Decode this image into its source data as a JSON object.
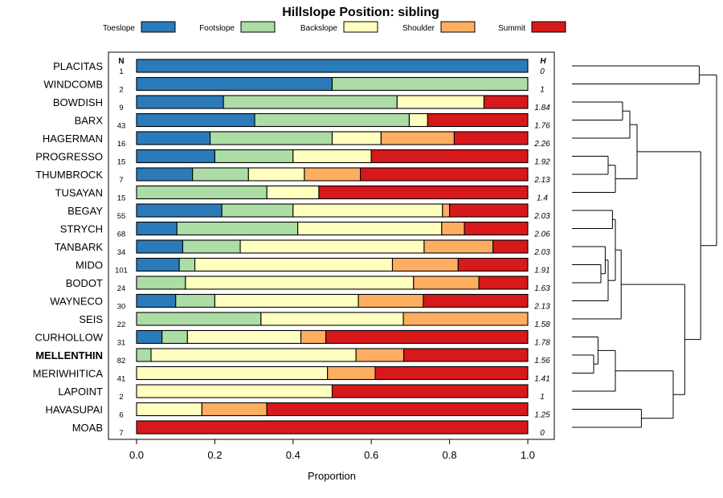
{
  "chart_data": {
    "type": "bar",
    "orientation": "horizontal",
    "stacked": true,
    "title": "Hillslope Position: sibling",
    "xlabel": "Proportion",
    "ylabel": "",
    "xlim": [
      0,
      1
    ],
    "x_ticks": [
      "0.0",
      "0.2",
      "0.4",
      "0.6",
      "0.8",
      "1.0"
    ],
    "n_header": "N",
    "h_header": "H",
    "legend_position": "top",
    "highlight": "MELLENTHIN",
    "series": [
      {
        "name": "Toeslope",
        "color": "#2b7bba"
      },
      {
        "name": "Footslope",
        "color": "#abdda4"
      },
      {
        "name": "Backslope",
        "color": "#ffffbf"
      },
      {
        "name": "Shoulder",
        "color": "#fdae61"
      },
      {
        "name": "Summit",
        "color": "#d7191c"
      }
    ],
    "categories": [
      "PLACITAS",
      "WINDCOMB",
      "BOWDISH",
      "BARX",
      "HAGERMAN",
      "PROGRESSO",
      "THUMBROCK",
      "TUSAYAN",
      "BEGAY",
      "STRYCH",
      "TANBARK",
      "MIDO",
      "BODOT",
      "WAYNECO",
      "SEIS",
      "CURHOLLOW",
      "MELLENTHIN",
      "MERIWHITICA",
      "LAPOINT",
      "HAVASUPAI",
      "MOAB"
    ],
    "n": [
      "1",
      "2",
      "9",
      "43",
      "16",
      "15",
      "7",
      "15",
      "55",
      "68",
      "34",
      "101",
      "24",
      "30",
      "22",
      "31",
      "82",
      "41",
      "2",
      "6",
      "7"
    ],
    "h": [
      "0",
      "1",
      "1.84",
      "1.76",
      "2.26",
      "1.92",
      "2.13",
      "1.4",
      "2.03",
      "2.06",
      "2.03",
      "1.91",
      "1.63",
      "2.13",
      "1.58",
      "1.78",
      "1.56",
      "1.41",
      "1",
      "1.25",
      "0"
    ],
    "values": [
      [
        1.0,
        0,
        0,
        0,
        0
      ],
      [
        0.5,
        0.5,
        0,
        0,
        0
      ],
      [
        0.222,
        0.444,
        0.222,
        0,
        0.112
      ],
      [
        0.302,
        0.395,
        0.047,
        0,
        0.256
      ],
      [
        0.188,
        0.312,
        0.125,
        0.187,
        0.188
      ],
      [
        0.2,
        0.2,
        0.2,
        0,
        0.4
      ],
      [
        0.143,
        0.143,
        0.143,
        0.143,
        0.428
      ],
      [
        0,
        0.333,
        0.133,
        0,
        0.534
      ],
      [
        0.218,
        0.182,
        0.382,
        0.018,
        0.2
      ],
      [
        0.103,
        0.309,
        0.368,
        0.058,
        0.162
      ],
      [
        0.118,
        0.147,
        0.47,
        0.176,
        0.089
      ],
      [
        0.109,
        0.04,
        0.505,
        0.168,
        0.178
      ],
      [
        0,
        0.125,
        0.583,
        0.167,
        0.125
      ],
      [
        0.1,
        0.1,
        0.367,
        0.166,
        0.267
      ],
      [
        0,
        0.318,
        0.364,
        0.318,
        0
      ],
      [
        0.065,
        0.065,
        0.29,
        0.064,
        0.516
      ],
      [
        0,
        0.037,
        0.524,
        0.122,
        0.317
      ],
      [
        0,
        0,
        0.488,
        0.122,
        0.39
      ],
      [
        0,
        0,
        0.5,
        0,
        0.5
      ],
      [
        0,
        0,
        0.167,
        0.166,
        0.667
      ],
      [
        0,
        0,
        0,
        0,
        1.0
      ]
    ],
    "dendrogram": {
      "leaf_order": [
        "PLACITAS",
        "WINDCOMB",
        "BOWDISH",
        "BARX",
        "HAGERMAN",
        "PROGRESSO",
        "THUMBROCK",
        "TUSAYAN",
        "BEGAY",
        "STRYCH",
        "TANBARK",
        "MIDO",
        "BODOT",
        "WAYNECO",
        "SEIS",
        "CURHOLLOW",
        "MELLENTHIN",
        "MERIWHITICA",
        "LAPOINT",
        "HAVASUPAI",
        "MOAB"
      ],
      "merges": [
        [
          0,
          1,
          0.88
        ],
        [
          2,
          3,
          0.35
        ],
        [
          -2,
          4,
          0.4
        ],
        [
          5,
          6,
          0.25
        ],
        [
          -4,
          7,
          0.3
        ],
        [
          -3,
          -5,
          0.45
        ],
        [
          8,
          9,
          0.28
        ],
        [
          11,
          12,
          0.2
        ],
        [
          10,
          -8,
          0.23
        ],
        [
          -9,
          13,
          0.25
        ],
        [
          -7,
          -10,
          0.3
        ],
        [
          -11,
          14,
          0.34
        ],
        [
          16,
          17,
          0.15
        ],
        [
          15,
          -13,
          0.18
        ],
        [
          -14,
          18,
          0.3
        ],
        [
          19,
          20,
          0.48
        ],
        [
          -15,
          -16,
          0.7
        ],
        [
          -12,
          -17,
          0.78
        ],
        [
          -6,
          -18,
          0.89
        ],
        [
          -1,
          -19,
          1.0
        ]
      ]
    }
  }
}
